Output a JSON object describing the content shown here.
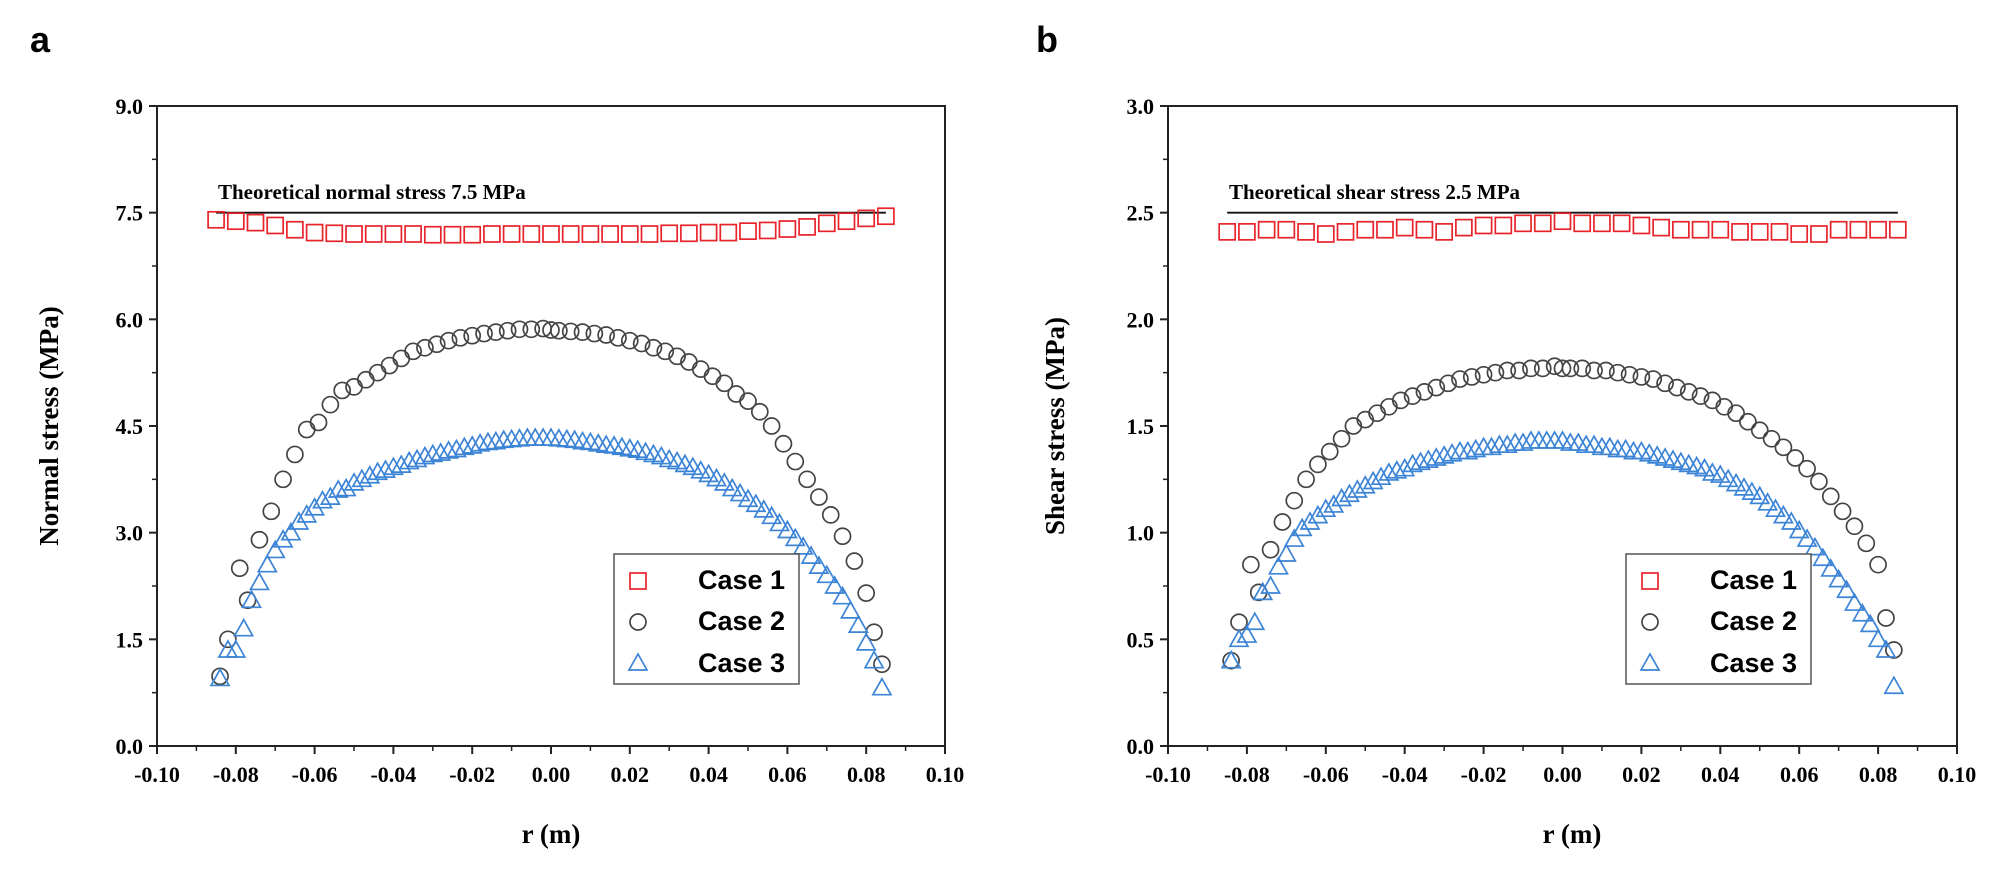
{
  "chart_data": [
    {
      "panel_label": "a",
      "type": "scatter",
      "xlabel": "r (m)",
      "ylabel": "Normal stress (MPa)",
      "xlim": [
        -0.1,
        0.1
      ],
      "ylim": [
        0.0,
        9.0
      ],
      "xticks": [
        -0.1,
        -0.08,
        -0.06,
        -0.04,
        -0.02,
        0.0,
        0.02,
        0.04,
        0.06,
        0.08,
        0.1
      ],
      "xtick_labels": [
        "-0.10",
        "-0.08",
        "-0.06",
        "-0.04",
        "-0.02",
        "0.00",
        "0.02",
        "0.04",
        "0.06",
        "0.08",
        "0.10"
      ],
      "yticks": [
        0.0,
        1.5,
        3.0,
        4.5,
        6.0,
        7.5,
        9.0
      ],
      "ytick_labels": [
        "0.0",
        "1.5",
        "3.0",
        "4.5",
        "6.0",
        "7.5",
        "9.0"
      ],
      "grid": false,
      "legend": "bottom-right",
      "reference_line": {
        "y": 7.5,
        "x_from": -0.085,
        "x_to": 0.085,
        "label": "Theoretical normal stress 7.5 MPa"
      },
      "series": [
        {
          "name": "Case 1",
          "marker": "square",
          "color": "#e8242b",
          "x": [
            -0.085,
            -0.08,
            -0.075,
            -0.07,
            -0.065,
            -0.06,
            -0.055,
            -0.05,
            -0.045,
            -0.04,
            -0.035,
            -0.03,
            -0.025,
            -0.02,
            -0.015,
            -0.01,
            -0.005,
            0.0,
            0.005,
            0.01,
            0.015,
            0.02,
            0.025,
            0.03,
            0.035,
            0.04,
            0.045,
            0.05,
            0.055,
            0.06,
            0.065,
            0.07,
            0.075,
            0.08,
            0.085
          ],
          "y": [
            7.4,
            7.38,
            7.36,
            7.32,
            7.26,
            7.22,
            7.21,
            7.2,
            7.2,
            7.2,
            7.2,
            7.19,
            7.19,
            7.19,
            7.2,
            7.2,
            7.2,
            7.2,
            7.2,
            7.2,
            7.2,
            7.2,
            7.2,
            7.21,
            7.21,
            7.22,
            7.22,
            7.24,
            7.25,
            7.27,
            7.3,
            7.35,
            7.38,
            7.42,
            7.45
          ]
        },
        {
          "name": "Case 2",
          "marker": "circle",
          "color": "#444444",
          "x": [
            -0.084,
            -0.082,
            -0.079,
            -0.077,
            -0.074,
            -0.071,
            -0.068,
            -0.065,
            -0.062,
            -0.059,
            -0.056,
            -0.053,
            -0.05,
            -0.047,
            -0.044,
            -0.041,
            -0.038,
            -0.035,
            -0.032,
            -0.029,
            -0.026,
            -0.023,
            -0.02,
            -0.017,
            -0.014,
            -0.011,
            -0.008,
            -0.005,
            -0.002,
            0.0,
            0.002,
            0.005,
            0.008,
            0.011,
            0.014,
            0.017,
            0.02,
            0.023,
            0.026,
            0.029,
            0.032,
            0.035,
            0.038,
            0.041,
            0.044,
            0.047,
            0.05,
            0.053,
            0.056,
            0.059,
            0.062,
            0.065,
            0.068,
            0.071,
            0.074,
            0.077,
            0.08,
            0.082,
            0.084
          ],
          "y": [
            0.98,
            1.5,
            2.5,
            2.05,
            2.9,
            3.3,
            3.75,
            4.1,
            4.45,
            4.55,
            4.8,
            5.0,
            5.05,
            5.15,
            5.25,
            5.35,
            5.45,
            5.55,
            5.6,
            5.65,
            5.7,
            5.74,
            5.77,
            5.8,
            5.82,
            5.84,
            5.86,
            5.86,
            5.87,
            5.85,
            5.84,
            5.83,
            5.82,
            5.8,
            5.78,
            5.74,
            5.7,
            5.66,
            5.6,
            5.55,
            5.48,
            5.4,
            5.3,
            5.2,
            5.1,
            4.95,
            4.85,
            4.7,
            4.5,
            4.25,
            4.0,
            3.75,
            3.5,
            3.25,
            2.95,
            2.6,
            2.15,
            1.6,
            1.15
          ]
        },
        {
          "name": "Case 3",
          "marker": "triangle",
          "color": "#3c84d6",
          "x": [
            -0.084,
            -0.082,
            -0.08,
            -0.078,
            -0.076,
            -0.074,
            -0.072,
            -0.07,
            -0.068,
            -0.066,
            -0.064,
            -0.062,
            -0.06,
            -0.058,
            -0.056,
            -0.054,
            -0.052,
            -0.05,
            -0.048,
            -0.046,
            -0.044,
            -0.042,
            -0.04,
            -0.038,
            -0.036,
            -0.034,
            -0.032,
            -0.03,
            -0.028,
            -0.026,
            -0.024,
            -0.022,
            -0.02,
            -0.018,
            -0.016,
            -0.014,
            -0.012,
            -0.01,
            -0.008,
            -0.006,
            -0.004,
            -0.002,
            0.0,
            0.002,
            0.004,
            0.006,
            0.008,
            0.01,
            0.012,
            0.014,
            0.016,
            0.018,
            0.02,
            0.022,
            0.024,
            0.026,
            0.028,
            0.03,
            0.032,
            0.034,
            0.036,
            0.038,
            0.04,
            0.042,
            0.044,
            0.046,
            0.048,
            0.05,
            0.052,
            0.054,
            0.056,
            0.058,
            0.06,
            0.062,
            0.064,
            0.066,
            0.068,
            0.07,
            0.072,
            0.074,
            0.076,
            0.078,
            0.08,
            0.082,
            0.084
          ],
          "y": [
            0.95,
            1.35,
            1.35,
            1.65,
            2.05,
            2.3,
            2.55,
            2.75,
            2.9,
            3.0,
            3.15,
            3.25,
            3.35,
            3.45,
            3.5,
            3.6,
            3.62,
            3.7,
            3.75,
            3.8,
            3.85,
            3.88,
            3.92,
            3.95,
            4.0,
            4.03,
            4.07,
            4.1,
            4.12,
            4.15,
            4.17,
            4.2,
            4.22,
            4.25,
            4.27,
            4.28,
            4.3,
            4.31,
            4.32,
            4.33,
            4.33,
            4.33,
            4.33,
            4.32,
            4.31,
            4.3,
            4.28,
            4.27,
            4.25,
            4.23,
            4.22,
            4.2,
            4.18,
            4.16,
            4.13,
            4.1,
            4.07,
            4.03,
            4.0,
            3.96,
            3.92,
            3.87,
            3.82,
            3.76,
            3.7,
            3.62,
            3.55,
            3.47,
            3.4,
            3.32,
            3.23,
            3.13,
            3.03,
            2.92,
            2.8,
            2.67,
            2.53,
            2.4,
            2.25,
            2.1,
            1.9,
            1.7,
            1.45,
            1.2,
            0.82
          ]
        }
      ]
    },
    {
      "panel_label": "b",
      "type": "scatter",
      "xlabel": "r (m)",
      "ylabel": "Shear stress (MPa)",
      "xlim": [
        -0.1,
        0.1
      ],
      "ylim": [
        0.0,
        3.0
      ],
      "xticks": [
        -0.1,
        -0.08,
        -0.06,
        -0.04,
        -0.02,
        0.0,
        0.02,
        0.04,
        0.06,
        0.08,
        0.1
      ],
      "xtick_labels": [
        "-0.10",
        "-0.08",
        "-0.06",
        "-0.04",
        "-0.02",
        "0.00",
        "0.02",
        "0.04",
        "0.06",
        "0.08",
        "0.10"
      ],
      "yticks": [
        0.0,
        0.5,
        1.0,
        1.5,
        2.0,
        2.5,
        3.0
      ],
      "ytick_labels": [
        "0.0",
        "0.5",
        "1.0",
        "1.5",
        "2.0",
        "2.5",
        "3.0"
      ],
      "grid": false,
      "legend": "bottom-right",
      "reference_line": {
        "y": 2.5,
        "x_from": -0.085,
        "x_to": 0.085,
        "label": "Theoretical shear stress 2.5 MPa"
      },
      "series": [
        {
          "name": "Case 1",
          "marker": "square",
          "color": "#e8242b",
          "x": [
            -0.085,
            -0.08,
            -0.075,
            -0.07,
            -0.065,
            -0.06,
            -0.055,
            -0.05,
            -0.045,
            -0.04,
            -0.035,
            -0.03,
            -0.025,
            -0.02,
            -0.015,
            -0.01,
            -0.005,
            0.0,
            0.005,
            0.01,
            0.015,
            0.02,
            0.025,
            0.03,
            0.035,
            0.04,
            0.045,
            0.05,
            0.055,
            0.06,
            0.065,
            0.07,
            0.075,
            0.08,
            0.085
          ],
          "y": [
            2.41,
            2.41,
            2.42,
            2.42,
            2.41,
            2.4,
            2.41,
            2.42,
            2.42,
            2.43,
            2.42,
            2.41,
            2.43,
            2.44,
            2.44,
            2.45,
            2.45,
            2.46,
            2.45,
            2.45,
            2.45,
            2.44,
            2.43,
            2.42,
            2.42,
            2.42,
            2.41,
            2.41,
            2.41,
            2.4,
            2.4,
            2.42,
            2.42,
            2.42,
            2.42
          ]
        },
        {
          "name": "Case 2",
          "marker": "circle",
          "color": "#444444",
          "x": [
            -0.084,
            -0.082,
            -0.079,
            -0.077,
            -0.074,
            -0.071,
            -0.068,
            -0.065,
            -0.062,
            -0.059,
            -0.056,
            -0.053,
            -0.05,
            -0.047,
            -0.044,
            -0.041,
            -0.038,
            -0.035,
            -0.032,
            -0.029,
            -0.026,
            -0.023,
            -0.02,
            -0.017,
            -0.014,
            -0.011,
            -0.008,
            -0.005,
            -0.002,
            0.0,
            0.002,
            0.005,
            0.008,
            0.011,
            0.014,
            0.017,
            0.02,
            0.023,
            0.026,
            0.029,
            0.032,
            0.035,
            0.038,
            0.041,
            0.044,
            0.047,
            0.05,
            0.053,
            0.056,
            0.059,
            0.062,
            0.065,
            0.068,
            0.071,
            0.074,
            0.077,
            0.08,
            0.082,
            0.084
          ],
          "y": [
            0.4,
            0.58,
            0.85,
            0.72,
            0.92,
            1.05,
            1.15,
            1.25,
            1.32,
            1.38,
            1.44,
            1.5,
            1.53,
            1.56,
            1.59,
            1.62,
            1.64,
            1.66,
            1.68,
            1.7,
            1.72,
            1.73,
            1.74,
            1.75,
            1.76,
            1.76,
            1.77,
            1.77,
            1.78,
            1.77,
            1.77,
            1.77,
            1.76,
            1.76,
            1.75,
            1.74,
            1.73,
            1.72,
            1.7,
            1.68,
            1.66,
            1.64,
            1.62,
            1.59,
            1.56,
            1.52,
            1.48,
            1.44,
            1.4,
            1.35,
            1.3,
            1.24,
            1.17,
            1.1,
            1.03,
            0.95,
            0.85,
            0.6,
            0.45
          ]
        },
        {
          "name": "Case 3",
          "marker": "triangle",
          "color": "#3c84d6",
          "x": [
            -0.084,
            -0.082,
            -0.08,
            -0.078,
            -0.076,
            -0.074,
            -0.072,
            -0.07,
            -0.068,
            -0.066,
            -0.064,
            -0.062,
            -0.06,
            -0.058,
            -0.056,
            -0.054,
            -0.052,
            -0.05,
            -0.048,
            -0.046,
            -0.044,
            -0.042,
            -0.04,
            -0.038,
            -0.036,
            -0.034,
            -0.032,
            -0.03,
            -0.028,
            -0.026,
            -0.024,
            -0.022,
            -0.02,
            -0.018,
            -0.016,
            -0.014,
            -0.012,
            -0.01,
            -0.008,
            -0.006,
            -0.004,
            -0.002,
            0.0,
            0.002,
            0.004,
            0.006,
            0.008,
            0.01,
            0.012,
            0.014,
            0.016,
            0.018,
            0.02,
            0.022,
            0.024,
            0.026,
            0.028,
            0.03,
            0.032,
            0.034,
            0.036,
            0.038,
            0.04,
            0.042,
            0.044,
            0.046,
            0.048,
            0.05,
            0.052,
            0.054,
            0.056,
            0.058,
            0.06,
            0.062,
            0.064,
            0.066,
            0.068,
            0.07,
            0.072,
            0.074,
            0.076,
            0.078,
            0.08,
            0.082,
            0.084
          ],
          "y": [
            0.4,
            0.5,
            0.52,
            0.58,
            0.72,
            0.75,
            0.84,
            0.9,
            0.97,
            1.02,
            1.05,
            1.08,
            1.11,
            1.13,
            1.16,
            1.18,
            1.2,
            1.22,
            1.24,
            1.26,
            1.28,
            1.29,
            1.3,
            1.32,
            1.33,
            1.34,
            1.35,
            1.36,
            1.37,
            1.38,
            1.38,
            1.39,
            1.4,
            1.4,
            1.41,
            1.41,
            1.42,
            1.42,
            1.43,
            1.43,
            1.43,
            1.43,
            1.43,
            1.42,
            1.42,
            1.41,
            1.41,
            1.4,
            1.4,
            1.39,
            1.39,
            1.38,
            1.38,
            1.37,
            1.36,
            1.35,
            1.34,
            1.33,
            1.32,
            1.31,
            1.3,
            1.28,
            1.27,
            1.25,
            1.23,
            1.21,
            1.19,
            1.17,
            1.14,
            1.11,
            1.08,
            1.05,
            1.01,
            0.97,
            0.93,
            0.88,
            0.83,
            0.78,
            0.73,
            0.67,
            0.62,
            0.57,
            0.5,
            0.45,
            0.28
          ]
        }
      ]
    }
  ]
}
